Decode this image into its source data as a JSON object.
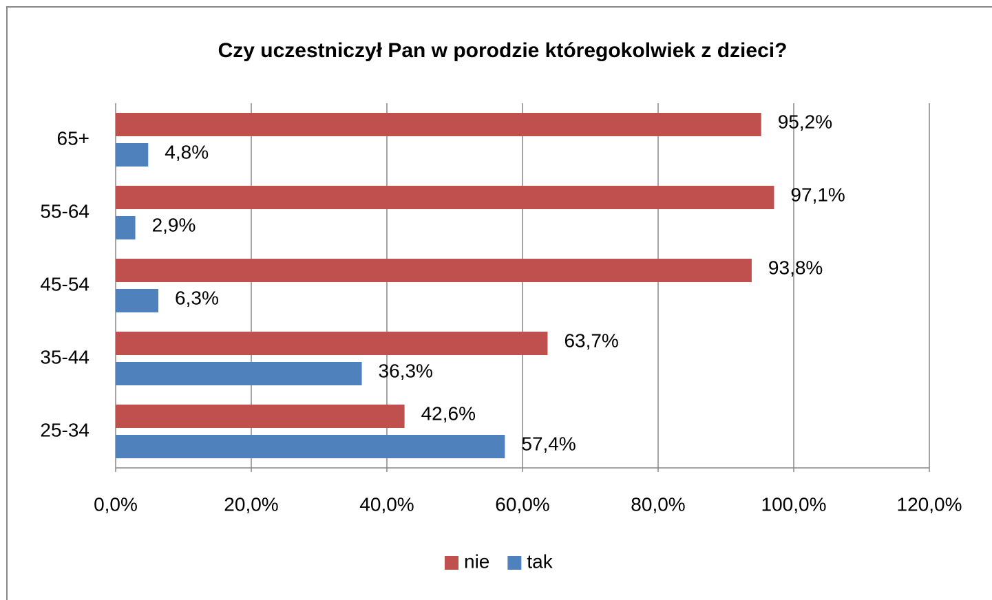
{
  "chart_data": {
    "type": "bar",
    "orientation": "horizontal",
    "title": "Czy uczestniczył Pan w porodzie któregokolwiek z dzieci?",
    "categories": [
      "65+",
      "55-64",
      "45-54",
      "35-44",
      "25-34"
    ],
    "series": [
      {
        "name": "nie",
        "color": "#c0504d",
        "values": [
          95.2,
          97.1,
          93.8,
          63.7,
          42.6
        ],
        "value_labels": [
          "95,2%",
          "97,1%",
          "93,8%",
          "63,7%",
          "42,6%"
        ]
      },
      {
        "name": "tak",
        "color": "#4f81bd",
        "values": [
          4.8,
          2.9,
          6.3,
          36.3,
          57.4
        ],
        "value_labels": [
          "4,8%",
          "2,9%",
          "6,3%",
          "36,3%",
          "57,4%"
        ]
      }
    ],
    "xlim": [
      0,
      120
    ],
    "xticks": [
      {
        "value": 0,
        "label": "0,0%"
      },
      {
        "value": 20,
        "label": "20,0%"
      },
      {
        "value": 40,
        "label": "40,0%"
      },
      {
        "value": 60,
        "label": "60,0%"
      },
      {
        "value": 80,
        "label": "80,0%"
      },
      {
        "value": 100,
        "label": "100,0%"
      },
      {
        "value": 120,
        "label": "120,0%"
      }
    ],
    "grid": true,
    "legend": "bottom"
  }
}
